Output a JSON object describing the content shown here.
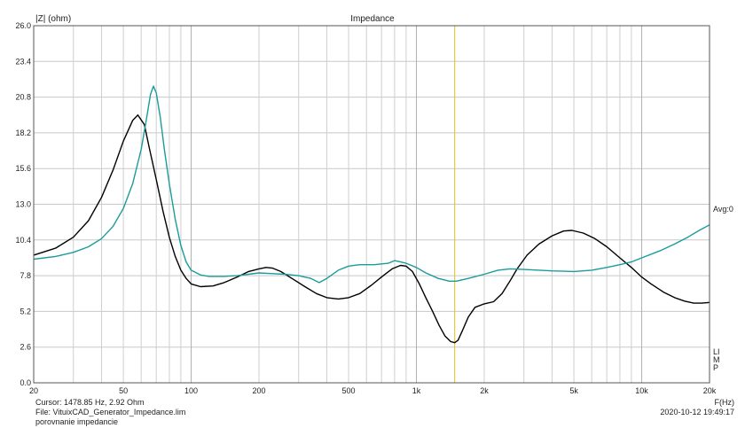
{
  "chart_data": {
    "type": "line",
    "title": "Impedance",
    "ylabel": "|Z| (ohm)",
    "xlabel": "F(Hz)",
    "x_scale": "log",
    "xlim": [
      20,
      20000
    ],
    "ylim": [
      0,
      26
    ],
    "x_tick_labels": [
      {
        "v": 20,
        "t": "20"
      },
      {
        "v": 50,
        "t": "50"
      },
      {
        "v": 100,
        "t": "100"
      },
      {
        "v": 200,
        "t": "200"
      },
      {
        "v": 500,
        "t": "500"
      },
      {
        "v": 1000,
        "t": "1k"
      },
      {
        "v": 2000,
        "t": "2k"
      },
      {
        "v": 5000,
        "t": "5k"
      },
      {
        "v": 10000,
        "t": "10k"
      },
      {
        "v": 20000,
        "t": "20k"
      }
    ],
    "y_ticks": [
      "0.0",
      "2.6",
      "5.2",
      "7.8",
      "10.4",
      "13.0",
      "15.6",
      "18.2",
      "20.8",
      "23.4",
      "26.0"
    ],
    "grid": true,
    "cursor_freq": 1478.85,
    "series": [
      {
        "color": "#000000",
        "points": [
          [
            20,
            9.3
          ],
          [
            25,
            9.8
          ],
          [
            30,
            10.6
          ],
          [
            35,
            11.8
          ],
          [
            40,
            13.5
          ],
          [
            45,
            15.5
          ],
          [
            50,
            17.6
          ],
          [
            55,
            19.1
          ],
          [
            58,
            19.5
          ],
          [
            62,
            18.8
          ],
          [
            65,
            17.2
          ],
          [
            70,
            14.8
          ],
          [
            75,
            12.5
          ],
          [
            80,
            10.6
          ],
          [
            85,
            9.2
          ],
          [
            90,
            8.2
          ],
          [
            95,
            7.6
          ],
          [
            100,
            7.2
          ],
          [
            110,
            7.0
          ],
          [
            125,
            7.05
          ],
          [
            140,
            7.3
          ],
          [
            160,
            7.7
          ],
          [
            180,
            8.1
          ],
          [
            200,
            8.3
          ],
          [
            215,
            8.4
          ],
          [
            230,
            8.35
          ],
          [
            250,
            8.1
          ],
          [
            280,
            7.6
          ],
          [
            320,
            7.0
          ],
          [
            360,
            6.5
          ],
          [
            400,
            6.2
          ],
          [
            450,
            6.1
          ],
          [
            500,
            6.2
          ],
          [
            560,
            6.5
          ],
          [
            630,
            7.1
          ],
          [
            700,
            7.7
          ],
          [
            780,
            8.3
          ],
          [
            850,
            8.55
          ],
          [
            900,
            8.5
          ],
          [
            960,
            8.1
          ],
          [
            1030,
            7.2
          ],
          [
            1100,
            6.2
          ],
          [
            1180,
            5.2
          ],
          [
            1260,
            4.2
          ],
          [
            1340,
            3.4
          ],
          [
            1420,
            3.0
          ],
          [
            1478.85,
            2.92
          ],
          [
            1530,
            3.1
          ],
          [
            1600,
            3.8
          ],
          [
            1700,
            4.8
          ],
          [
            1820,
            5.5
          ],
          [
            2000,
            5.75
          ],
          [
            2200,
            5.9
          ],
          [
            2400,
            6.5
          ],
          [
            2600,
            7.4
          ],
          [
            2800,
            8.3
          ],
          [
            3100,
            9.3
          ],
          [
            3500,
            10.1
          ],
          [
            4000,
            10.7
          ],
          [
            4500,
            11.05
          ],
          [
            4900,
            11.1
          ],
          [
            5500,
            10.9
          ],
          [
            6200,
            10.5
          ],
          [
            7000,
            9.9
          ],
          [
            8000,
            9.1
          ],
          [
            9000,
            8.4
          ],
          [
            10000,
            7.7
          ],
          [
            11000,
            7.2
          ],
          [
            12500,
            6.6
          ],
          [
            14000,
            6.2
          ],
          [
            15500,
            5.95
          ],
          [
            17000,
            5.8
          ],
          [
            18500,
            5.8
          ],
          [
            20000,
            5.85
          ]
        ]
      },
      {
        "color": "#1a9c9a",
        "points": [
          [
            20,
            9.0
          ],
          [
            25,
            9.2
          ],
          [
            30,
            9.5
          ],
          [
            35,
            9.9
          ],
          [
            40,
            10.5
          ],
          [
            45,
            11.4
          ],
          [
            50,
            12.7
          ],
          [
            55,
            14.5
          ],
          [
            60,
            17.0
          ],
          [
            63,
            19.0
          ],
          [
            66,
            21.0
          ],
          [
            68,
            21.6
          ],
          [
            70,
            21.1
          ],
          [
            73,
            19.3
          ],
          [
            76,
            17.0
          ],
          [
            80,
            14.5
          ],
          [
            85,
            11.9
          ],
          [
            90,
            10.0
          ],
          [
            95,
            8.8
          ],
          [
            100,
            8.2
          ],
          [
            110,
            7.85
          ],
          [
            120,
            7.75
          ],
          [
            140,
            7.75
          ],
          [
            160,
            7.8
          ],
          [
            180,
            7.9
          ],
          [
            200,
            8.0
          ],
          [
            230,
            7.95
          ],
          [
            260,
            7.9
          ],
          [
            300,
            7.8
          ],
          [
            340,
            7.6
          ],
          [
            370,
            7.3
          ],
          [
            400,
            7.6
          ],
          [
            450,
            8.2
          ],
          [
            500,
            8.5
          ],
          [
            560,
            8.6
          ],
          [
            650,
            8.6
          ],
          [
            750,
            8.7
          ],
          [
            800,
            8.9
          ],
          [
            850,
            8.8
          ],
          [
            900,
            8.7
          ],
          [
            1000,
            8.4
          ],
          [
            1100,
            8.0
          ],
          [
            1250,
            7.6
          ],
          [
            1400,
            7.4
          ],
          [
            1500,
            7.4
          ],
          [
            1700,
            7.6
          ],
          [
            2000,
            7.9
          ],
          [
            2300,
            8.2
          ],
          [
            2600,
            8.3
          ],
          [
            3000,
            8.25
          ],
          [
            3500,
            8.2
          ],
          [
            4000,
            8.15
          ],
          [
            5000,
            8.1
          ],
          [
            6000,
            8.2
          ],
          [
            7000,
            8.4
          ],
          [
            8000,
            8.6
          ],
          [
            9000,
            8.8
          ],
          [
            10000,
            9.1
          ],
          [
            12000,
            9.6
          ],
          [
            14000,
            10.1
          ],
          [
            16000,
            10.6
          ],
          [
            18000,
            11.1
          ],
          [
            20000,
            11.5
          ]
        ]
      }
    ]
  },
  "labels": {
    "avg": "Avg:0",
    "limp": "LIMP",
    "cursor": "Cursor: 1478.85 Hz, 2.92 Ohm",
    "file": "File: VituixCAD_Generator_Impedance.lim",
    "date": "2020-10-12 19:49:17",
    "desc": "porovnanie impedancie"
  }
}
